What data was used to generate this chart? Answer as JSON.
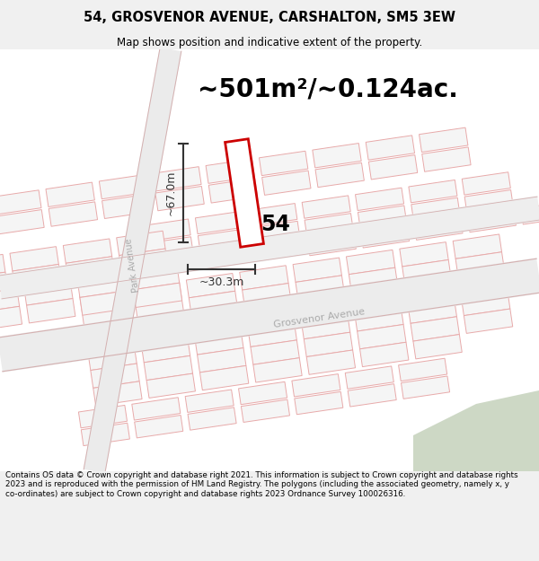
{
  "title": "54, GROSVENOR AVENUE, CARSHALTON, SM5 3EW",
  "subtitle": "Map shows position and indicative extent of the property.",
  "area_text": "~501m²/~0.124ac.",
  "label_54": "54",
  "dim_height": "~67.0m",
  "dim_width": "~30.3m",
  "footer": "Contains OS data © Crown copyright and database right 2021. This information is subject to Crown copyright and database rights 2023 and is reproduced with the permission of HM Land Registry. The polygons (including the associated geometry, namely x, y co-ordinates) are subject to Crown copyright and database rights 2023 Ordnance Survey 100026316.",
  "bg_color": "#f0f0f0",
  "map_bg": "#ffffff",
  "parcel_face": "#f5f5f5",
  "parcel_edge": "#e8aaaa",
  "road_face": "#e8e8e8",
  "road_edge": "#d0d0d0",
  "road_line": "#d4b0b0",
  "property_edge": "#cc0000",
  "green_fill": "#cdd8c5",
  "dim_color": "#333333",
  "road_label_color": "#aaaaaa",
  "grosvenor_label": "Grosvenor Avenue",
  "park_label": "Park Avenue",
  "figsize": [
    6.0,
    6.25
  ],
  "dpi": 100,
  "title_fontsize": 10.5,
  "subtitle_fontsize": 8.5,
  "area_fontsize": 20,
  "label_fontsize": 17,
  "dim_fontsize": 9,
  "footer_fontsize": 6.3
}
